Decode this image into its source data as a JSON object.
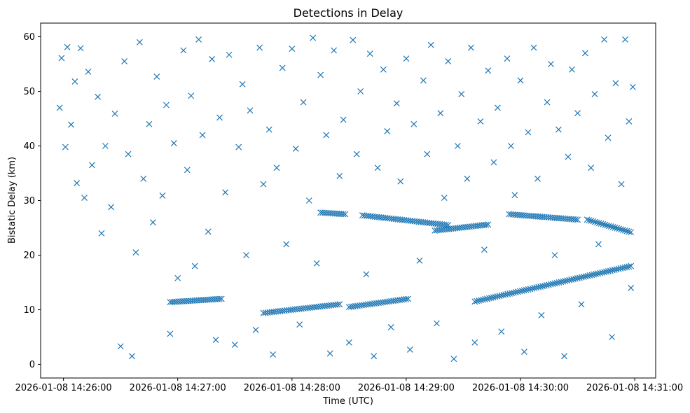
{
  "chart_data": {
    "type": "scatter",
    "title": "Detections in Delay",
    "xlabel": "Time (UTC)",
    "ylabel": "Bistatic Delay (km)",
    "marker": "x",
    "color": "#1f77b4",
    "grid": false,
    "xlim": [
      "2026-01-08 14:25:48",
      "2026-01-08 14:31:11"
    ],
    "ylim": [
      -2.5,
      62.5
    ],
    "xticks": [
      "2026-01-08 14:26:00",
      "2026-01-08 14:27:00",
      "2026-01-08 14:28:00",
      "2026-01-08 14:29:00",
      "2026-01-08 14:30:00",
      "2026-01-08 14:31:00"
    ],
    "yticks": [
      0,
      10,
      20,
      30,
      40,
      50,
      60
    ],
    "x_range_observed": [
      "2026-01-08 14:25:57",
      "2026-01-08 14:30:59"
    ],
    "y_range_observed": [
      0.5,
      59.8
    ],
    "background_points": [
      [
        "2026-01-08 14:25:58",
        47.0
      ],
      [
        "2026-01-08 14:25:59",
        56.1
      ],
      [
        "2026-01-08 14:26:01",
        39.8
      ],
      [
        "2026-01-08 14:26:02",
        58.1
      ],
      [
        "2026-01-08 14:26:04",
        43.9
      ],
      [
        "2026-01-08 14:26:06",
        51.8
      ],
      [
        "2026-01-08 14:26:07",
        33.2
      ],
      [
        "2026-01-08 14:26:09",
        57.9
      ],
      [
        "2026-01-08 14:26:11",
        30.5
      ],
      [
        "2026-01-08 14:26:13",
        53.6
      ],
      [
        "2026-01-08 14:26:15",
        36.5
      ],
      [
        "2026-01-08 14:26:18",
        49.0
      ],
      [
        "2026-01-08 14:26:20",
        24.0
      ],
      [
        "2026-01-08 14:26:22",
        40.0
      ],
      [
        "2026-01-08 14:26:25",
        28.8
      ],
      [
        "2026-01-08 14:26:27",
        45.9
      ],
      [
        "2026-01-08 14:26:30",
        3.3
      ],
      [
        "2026-01-08 14:26:32",
        55.5
      ],
      [
        "2026-01-08 14:26:34",
        38.5
      ],
      [
        "2026-01-08 14:26:36",
        1.5
      ],
      [
        "2026-01-08 14:26:38",
        20.5
      ],
      [
        "2026-01-08 14:26:40",
        59.0
      ],
      [
        "2026-01-08 14:26:42",
        34.0
      ],
      [
        "2026-01-08 14:26:45",
        44.0
      ],
      [
        "2026-01-08 14:26:47",
        26.0
      ],
      [
        "2026-01-08 14:26:49",
        52.7
      ],
      [
        "2026-01-08 14:26:52",
        30.9
      ],
      [
        "2026-01-08 14:26:54",
        47.5
      ],
      [
        "2026-01-08 14:26:56",
        5.6
      ],
      [
        "2026-01-08 14:26:58",
        40.5
      ],
      [
        "2026-01-08 14:27:00",
        15.8
      ],
      [
        "2026-01-08 14:27:03",
        57.5
      ],
      [
        "2026-01-08 14:27:05",
        35.6
      ],
      [
        "2026-01-08 14:27:07",
        49.2
      ],
      [
        "2026-01-08 14:27:09",
        18.0
      ],
      [
        "2026-01-08 14:27:11",
        59.5
      ],
      [
        "2026-01-08 14:27:13",
        42.0
      ],
      [
        "2026-01-08 14:27:16",
        24.3
      ],
      [
        "2026-01-08 14:27:18",
        55.9
      ],
      [
        "2026-01-08 14:27:20",
        4.5
      ],
      [
        "2026-01-08 14:27:22",
        45.2
      ],
      [
        "2026-01-08 14:27:25",
        31.5
      ],
      [
        "2026-01-08 14:27:27",
        56.7
      ],
      [
        "2026-01-08 14:27:30",
        3.6
      ],
      [
        "2026-01-08 14:27:32",
        39.8
      ],
      [
        "2026-01-08 14:27:34",
        51.3
      ],
      [
        "2026-01-08 14:27:36",
        20.0
      ],
      [
        "2026-01-08 14:27:38",
        46.5
      ],
      [
        "2026-01-08 14:27:41",
        6.3
      ],
      [
        "2026-01-08 14:27:43",
        58.0
      ],
      [
        "2026-01-08 14:27:45",
        33.0
      ],
      [
        "2026-01-08 14:27:48",
        43.0
      ],
      [
        "2026-01-08 14:27:50",
        1.8
      ],
      [
        "2026-01-08 14:27:52",
        36.0
      ],
      [
        "2026-01-08 14:27:55",
        54.3
      ],
      [
        "2026-01-08 14:27:57",
        22.0
      ],
      [
        "2026-01-08 14:28:00",
        57.8
      ],
      [
        "2026-01-08 14:28:02",
        39.5
      ],
      [
        "2026-01-08 14:28:04",
        7.3
      ],
      [
        "2026-01-08 14:28:06",
        48.0
      ],
      [
        "2026-01-08 14:28:09",
        30.0
      ],
      [
        "2026-01-08 14:28:11",
        59.8
      ],
      [
        "2026-01-08 14:28:13",
        18.5
      ],
      [
        "2026-01-08 14:28:15",
        53.0
      ],
      [
        "2026-01-08 14:28:18",
        42.0
      ],
      [
        "2026-01-08 14:28:20",
        2.0
      ],
      [
        "2026-01-08 14:28:22",
        57.5
      ],
      [
        "2026-01-08 14:28:25",
        34.5
      ],
      [
        "2026-01-08 14:28:27",
        44.8
      ],
      [
        "2026-01-08 14:28:30",
        4.0
      ],
      [
        "2026-01-08 14:28:32",
        59.4
      ],
      [
        "2026-01-08 14:28:34",
        38.5
      ],
      [
        "2026-01-08 14:28:36",
        50.0
      ],
      [
        "2026-01-08 14:28:39",
        16.5
      ],
      [
        "2026-01-08 14:28:41",
        56.9
      ],
      [
        "2026-01-08 14:28:43",
        1.5
      ],
      [
        "2026-01-08 14:28:45",
        36.0
      ],
      [
        "2026-01-08 14:28:48",
        54.0
      ],
      [
        "2026-01-08 14:28:50",
        42.7
      ],
      [
        "2026-01-08 14:28:52",
        6.8
      ],
      [
        "2026-01-08 14:28:55",
        47.8
      ],
      [
        "2026-01-08 14:28:57",
        33.5
      ],
      [
        "2026-01-08 14:29:00",
        56.0
      ],
      [
        "2026-01-08 14:29:02",
        2.7
      ],
      [
        "2026-01-08 14:29:04",
        44.0
      ],
      [
        "2026-01-08 14:29:07",
        19.0
      ],
      [
        "2026-01-08 14:29:09",
        52.0
      ],
      [
        "2026-01-08 14:29:11",
        38.5
      ],
      [
        "2026-01-08 14:29:13",
        58.5
      ],
      [
        "2026-01-08 14:29:16",
        7.5
      ],
      [
        "2026-01-08 14:29:18",
        46.0
      ],
      [
        "2026-01-08 14:29:20",
        30.5
      ],
      [
        "2026-01-08 14:29:22",
        55.5
      ],
      [
        "2026-01-08 14:29:25",
        1.0
      ],
      [
        "2026-01-08 14:29:27",
        40.0
      ],
      [
        "2026-01-08 14:29:29",
        49.5
      ],
      [
        "2026-01-08 14:29:32",
        34.0
      ],
      [
        "2026-01-08 14:29:34",
        58.0
      ],
      [
        "2026-01-08 14:29:36",
        4.0
      ],
      [
        "2026-01-08 14:29:39",
        44.5
      ],
      [
        "2026-01-08 14:29:41",
        21.0
      ],
      [
        "2026-01-08 14:29:43",
        53.8
      ],
      [
        "2026-01-08 14:29:46",
        37.0
      ],
      [
        "2026-01-08 14:29:48",
        47.0
      ],
      [
        "2026-01-08 14:29:50",
        6.0
      ],
      [
        "2026-01-08 14:29:53",
        56.0
      ],
      [
        "2026-01-08 14:29:55",
        40.0
      ],
      [
        "2026-01-08 14:29:57",
        31.0
      ],
      [
        "2026-01-08 14:30:00",
        52.0
      ],
      [
        "2026-01-08 14:30:02",
        2.3
      ],
      [
        "2026-01-08 14:30:04",
        42.5
      ],
      [
        "2026-01-08 14:30:07",
        58.0
      ],
      [
        "2026-01-08 14:30:09",
        34.0
      ],
      [
        "2026-01-08 14:30:11",
        9.0
      ],
      [
        "2026-01-08 14:30:14",
        48.0
      ],
      [
        "2026-01-08 14:30:16",
        55.0
      ],
      [
        "2026-01-08 14:30:18",
        20.0
      ],
      [
        "2026-01-08 14:30:20",
        43.0
      ],
      [
        "2026-01-08 14:30:23",
        1.5
      ],
      [
        "2026-01-08 14:30:25",
        38.0
      ],
      [
        "2026-01-08 14:30:27",
        54.0
      ],
      [
        "2026-01-08 14:30:30",
        46.0
      ],
      [
        "2026-01-08 14:30:32",
        11.0
      ],
      [
        "2026-01-08 14:30:34",
        57.0
      ],
      [
        "2026-01-08 14:30:37",
        36.0
      ],
      [
        "2026-01-08 14:30:39",
        49.5
      ],
      [
        "2026-01-08 14:30:41",
        22.0
      ],
      [
        "2026-01-08 14:30:44",
        59.5
      ],
      [
        "2026-01-08 14:30:46",
        41.5
      ],
      [
        "2026-01-08 14:30:48",
        5.0
      ],
      [
        "2026-01-08 14:30:50",
        51.5
      ],
      [
        "2026-01-08 14:30:53",
        33.0
      ],
      [
        "2026-01-08 14:30:55",
        59.5
      ],
      [
        "2026-01-08 14:30:57",
        44.5
      ],
      [
        "2026-01-08 14:30:58",
        14.0
      ],
      [
        "2026-01-08 14:30:59",
        50.8
      ]
    ],
    "tracks": [
      {
        "label": "",
        "start": [
          "2026-01-08 14:26:56",
          11.4
        ],
        "end": [
          "2026-01-08 14:27:23",
          12.0
        ]
      },
      {
        "label": "",
        "start": [
          "2026-01-08 14:27:45",
          9.4
        ],
        "end": [
          "2026-01-08 14:28:25",
          11.0
        ]
      },
      {
        "label": "",
        "start": [
          "2026-01-08 14:28:30",
          10.5
        ],
        "end": [
          "2026-01-08 14:29:01",
          12.0
        ]
      },
      {
        "label": "",
        "start": [
          "2026-01-08 14:29:36",
          11.5
        ],
        "end": [
          "2026-01-08 14:30:58",
          18.0
        ]
      },
      {
        "label": "",
        "start": [
          "2026-01-08 14:28:15",
          27.8
        ],
        "end": [
          "2026-01-08 14:28:28",
          27.5
        ]
      },
      {
        "label": "",
        "start": [
          "2026-01-08 14:28:37",
          27.3
        ],
        "end": [
          "2026-01-08 14:29:22",
          25.5
        ]
      },
      {
        "label": "",
        "start": [
          "2026-01-08 14:29:15",
          24.5
        ],
        "end": [
          "2026-01-08 14:29:43",
          25.6
        ]
      },
      {
        "label": "",
        "start": [
          "2026-01-08 14:29:54",
          27.5
        ],
        "end": [
          "2026-01-08 14:30:30",
          26.5
        ]
      },
      {
        "label": "",
        "start": [
          "2026-01-08 14:30:35",
          26.5
        ],
        "end": [
          "2026-01-08 14:30:58",
          24.2
        ]
      }
    ]
  }
}
